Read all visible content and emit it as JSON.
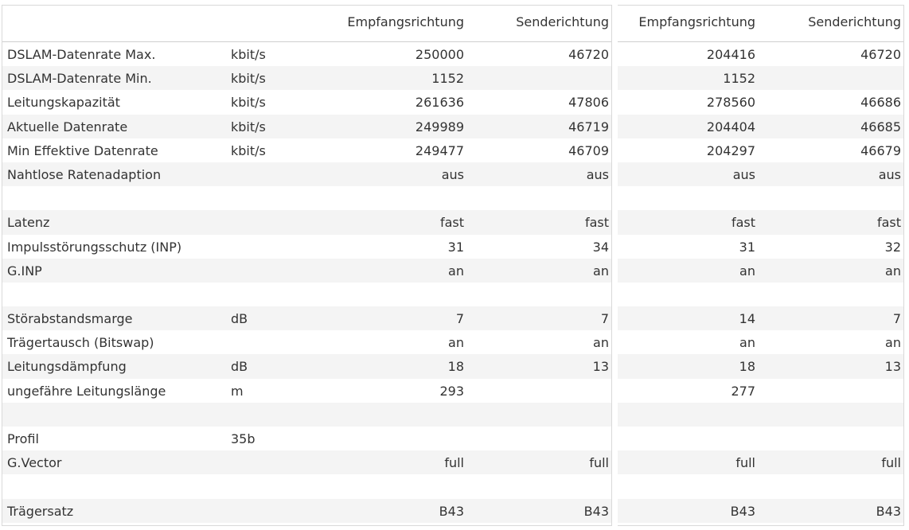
{
  "headers": {
    "left": {
      "col1": "Empfangsrichtung",
      "col2": "Senderichtung"
    },
    "right": {
      "col1": "Empfangsrichtung",
      "col2": "Senderichtung"
    }
  },
  "rows": [
    {
      "label": "DSLAM-Datenrate Max.",
      "unit": "kbit/s",
      "l1": "250000",
      "l2": "46720",
      "r1": "204416",
      "r2": "46720"
    },
    {
      "label": "DSLAM-Datenrate Min.",
      "unit": "kbit/s",
      "l1": "1152",
      "l2": "",
      "r1": "1152",
      "r2": ""
    },
    {
      "label": "Leitungskapazität",
      "unit": "kbit/s",
      "l1": "261636",
      "l2": "47806",
      "r1": "278560",
      "r2": "46686"
    },
    {
      "label": "Aktuelle Datenrate",
      "unit": "kbit/s",
      "l1": "249989",
      "l2": "46719",
      "r1": "204404",
      "r2": "46685"
    },
    {
      "label": "Min Effektive Datenrate",
      "unit": "kbit/s",
      "l1": "249477",
      "l2": "46709",
      "r1": "204297",
      "r2": "46679"
    },
    {
      "label": "Nahtlose Ratenadaption",
      "unit": "",
      "l1": "aus",
      "l2": "aus",
      "r1": "aus",
      "r2": "aus"
    },
    {
      "label": "",
      "unit": "",
      "l1": "",
      "l2": "",
      "r1": "",
      "r2": ""
    },
    {
      "label": "Latenz",
      "unit": "",
      "l1": "fast",
      "l2": "fast",
      "r1": "fast",
      "r2": "fast"
    },
    {
      "label": "Impulsstörungsschutz (INP)",
      "unit": "",
      "l1": "31",
      "l2": "34",
      "r1": "31",
      "r2": "32"
    },
    {
      "label": "G.INP",
      "unit": "",
      "l1": "an",
      "l2": "an",
      "r1": "an",
      "r2": "an"
    },
    {
      "label": "",
      "unit": "",
      "l1": "",
      "l2": "",
      "r1": "",
      "r2": ""
    },
    {
      "label": "Störabstandsmarge",
      "unit": "dB",
      "l1": "7",
      "l2": "7",
      "r1": "14",
      "r2": "7"
    },
    {
      "label": "Trägertausch (Bitswap)",
      "unit": "",
      "l1": "an",
      "l2": "an",
      "r1": "an",
      "r2": "an"
    },
    {
      "label": "Leitungsdämpfung",
      "unit": "dB",
      "l1": "18",
      "l2": "13",
      "r1": "18",
      "r2": "13"
    },
    {
      "label": "ungefähre Leitungslänge",
      "unit": "m",
      "l1": "293",
      "l2": "",
      "r1": "277",
      "r2": ""
    },
    {
      "label": "",
      "unit": "",
      "l1": "",
      "l2": "",
      "r1": "",
      "r2": ""
    },
    {
      "label": "Profil",
      "unit": "35b",
      "l1": "",
      "l2": "",
      "r1": "",
      "r2": ""
    },
    {
      "label": "G.Vector",
      "unit": "",
      "l1": "full",
      "l2": "full",
      "r1": "full",
      "r2": "full"
    },
    {
      "label": "",
      "unit": "",
      "l1": "",
      "l2": "",
      "r1": "",
      "r2": ""
    },
    {
      "label": "Trägersatz",
      "unit": "",
      "l1": "B43",
      "l2": "B43",
      "r1": "B43",
      "r2": "B43"
    }
  ],
  "colors": {
    "row_alt": "#f4f4f4",
    "border": "#d9d9d9",
    "text": "#333333"
  }
}
